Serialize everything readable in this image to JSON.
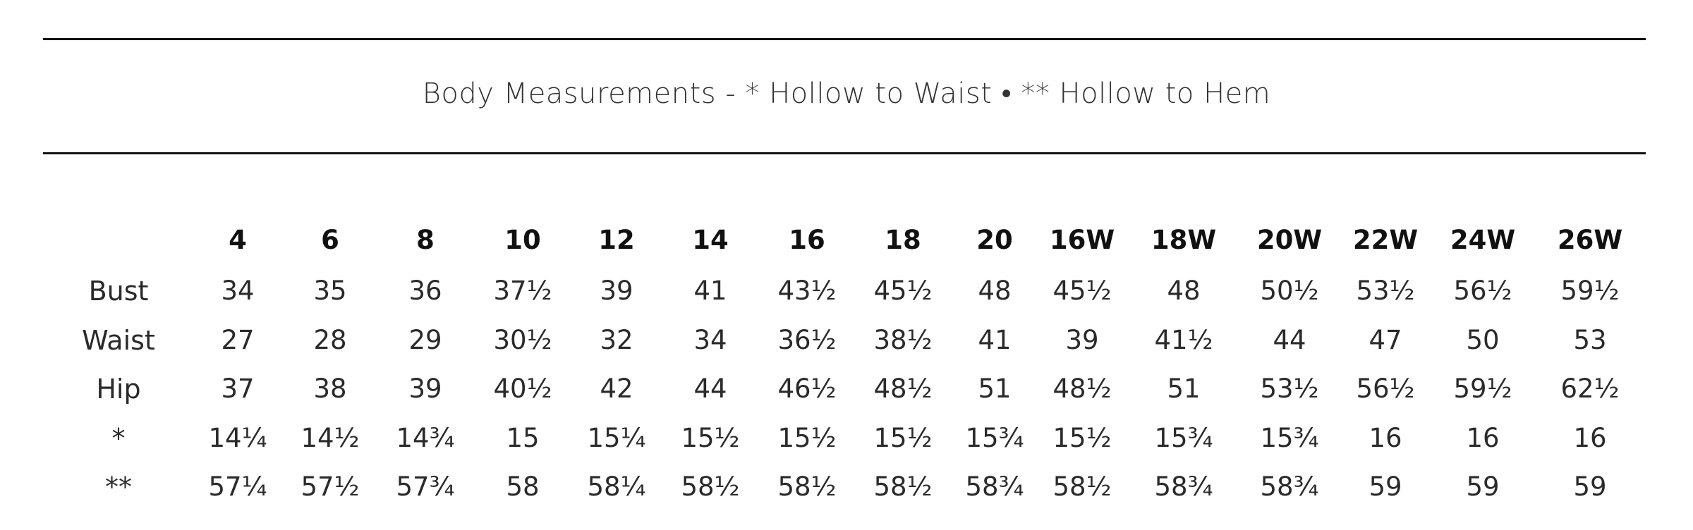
{
  "header": {
    "title": "Body Measurements - * Hollow to Waist • ** Hollow to Hem"
  },
  "table": {
    "columns": [
      "4",
      "6",
      "8",
      "10",
      "12",
      "14",
      "16",
      "18",
      "20",
      "16W",
      "18W",
      "20W",
      "22W",
      "24W",
      "26W"
    ],
    "rows": [
      {
        "label": "Bust",
        "cells": [
          "34",
          "35",
          "36",
          "37½",
          "39",
          "41",
          "43½",
          "45½",
          "48",
          "45½",
          "48",
          "50½",
          "53½",
          "56½",
          "59½"
        ]
      },
      {
        "label": "Waist",
        "cells": [
          "27",
          "28",
          "29",
          "30½",
          "32",
          "34",
          "36½",
          "38½",
          "41",
          "39",
          "41½",
          "44",
          "47",
          "50",
          "53"
        ]
      },
      {
        "label": "Hip",
        "cells": [
          "37",
          "38",
          "39",
          "40½",
          "42",
          "44",
          "46½",
          "48½",
          "51",
          "48½",
          "51",
          "53½",
          "56½",
          "59½",
          "62½"
        ]
      },
      {
        "label": "*",
        "cells": [
          "14¼",
          "14½",
          "14¾",
          "15",
          "15¼",
          "15½",
          "15½",
          "15½",
          "15¾",
          "15½",
          "15¾",
          "15¾",
          "16",
          "16",
          "16"
        ]
      },
      {
        "label": "**",
        "cells": [
          "57¼",
          "57½",
          "57¾",
          "58",
          "58¼",
          "58½",
          "58½",
          "58½",
          "58¾",
          "58½",
          "58¾",
          "58¾",
          "59",
          "59",
          "59"
        ]
      }
    ]
  }
}
